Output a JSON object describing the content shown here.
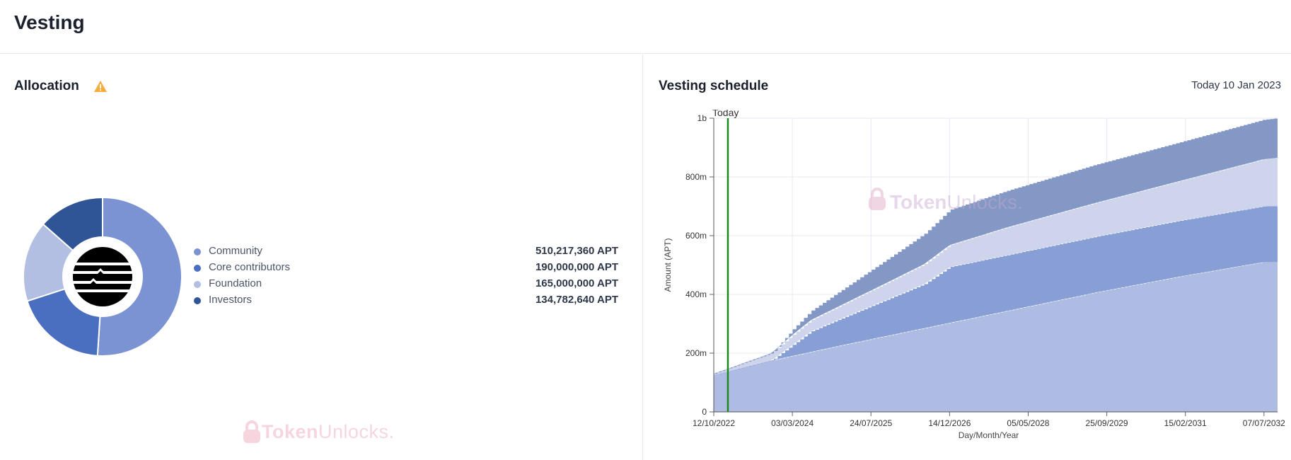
{
  "page": {
    "title": "Vesting"
  },
  "allocation": {
    "title": "Allocation",
    "warning_icon": "warning-triangle-icon",
    "logo_icon": "aptos-logo-icon",
    "items": [
      {
        "name": "Community",
        "value": "510,217,360 APT",
        "amount": 510217360,
        "color": "#7b93d3"
      },
      {
        "name": "Core contributors",
        "value": "190,000,000 APT",
        "amount": 190000000,
        "color": "#4a6fc0"
      },
      {
        "name": "Foundation",
        "value": "165,000,000 APT",
        "amount": 165000000,
        "color": "#b2bfe3"
      },
      {
        "name": "Investors",
        "value": "134,782,640 APT",
        "amount": 134782640,
        "color": "#2f5597"
      }
    ]
  },
  "schedule": {
    "title": "Vesting schedule",
    "today_text": "Today 10 Jan 2023",
    "watermark": {
      "bold": "Token",
      "light": "Unlocks."
    },
    "chart_data": {
      "type": "area",
      "stacked": true,
      "xlabel": "Day/Month/Year",
      "ylabel": "Amount (APT)",
      "x_tick_labels": [
        "12/10/2022",
        "03/03/2024",
        "24/07/2025",
        "14/12/2026",
        "05/05/2028",
        "25/09/2029",
        "15/02/2031",
        "07/07/2032"
      ],
      "y_tick_labels": [
        "0",
        "200m",
        "400m",
        "600m",
        "800m",
        "1b"
      ],
      "ylim": [
        0,
        1000000000
      ],
      "x_years": [
        2022.78,
        2024.17,
        2025.56,
        2026.95,
        2028.34,
        2029.73,
        2031.12,
        2032.51
      ],
      "today_marker": {
        "label": "Today",
        "x_year": 2023.03,
        "color": "#1a8a1a"
      },
      "grid": true,
      "series": [
        {
          "name": "Community",
          "color": "#aebbe2",
          "x": [
            2022.78,
            2023.8,
            2025.0,
            2026.5,
            2028.0,
            2029.5,
            2031.0,
            2032.5,
            2032.75
          ],
          "y": [
            125000000,
            175000000,
            225000000,
            285000000,
            345000000,
            405000000,
            460000000,
            510000000,
            510000000
          ]
        },
        {
          "name": "Core contributors",
          "color": "#879fd4",
          "x": [
            2022.78,
            2023.75,
            2023.8,
            2024.5,
            2025.5,
            2026.5,
            2026.95,
            2028.0,
            2029.5,
            2031.0,
            2032.5,
            2032.75
          ],
          "y": [
            0,
            0,
            0,
            70000000,
            110000000,
            150000000,
            190000000,
            190000000,
            190000000,
            190000000,
            190000000,
            190000000
          ]
        },
        {
          "name": "Foundation",
          "color": "#cdd4ec",
          "x": [
            2022.78,
            2023.8,
            2024.2,
            2025.0,
            2026.0,
            2026.95,
            2028.0,
            2029.5,
            2031.0,
            2032.5,
            2032.75
          ],
          "y": [
            5000000,
            25000000,
            35000000,
            45000000,
            60000000,
            75000000,
            95000000,
            115000000,
            135000000,
            160000000,
            165000000
          ]
        },
        {
          "name": "Investors",
          "color": "#8398c4",
          "x": [
            2022.78,
            2023.85,
            2024.2,
            2025.0,
            2026.0,
            2026.95,
            2028.0,
            2029.5,
            2031.0,
            2032.5,
            2032.75
          ],
          "y": [
            0,
            0,
            20000000,
            50000000,
            85000000,
            120000000,
            125000000,
            130000000,
            132000000,
            134782640,
            134782640
          ]
        }
      ]
    }
  }
}
